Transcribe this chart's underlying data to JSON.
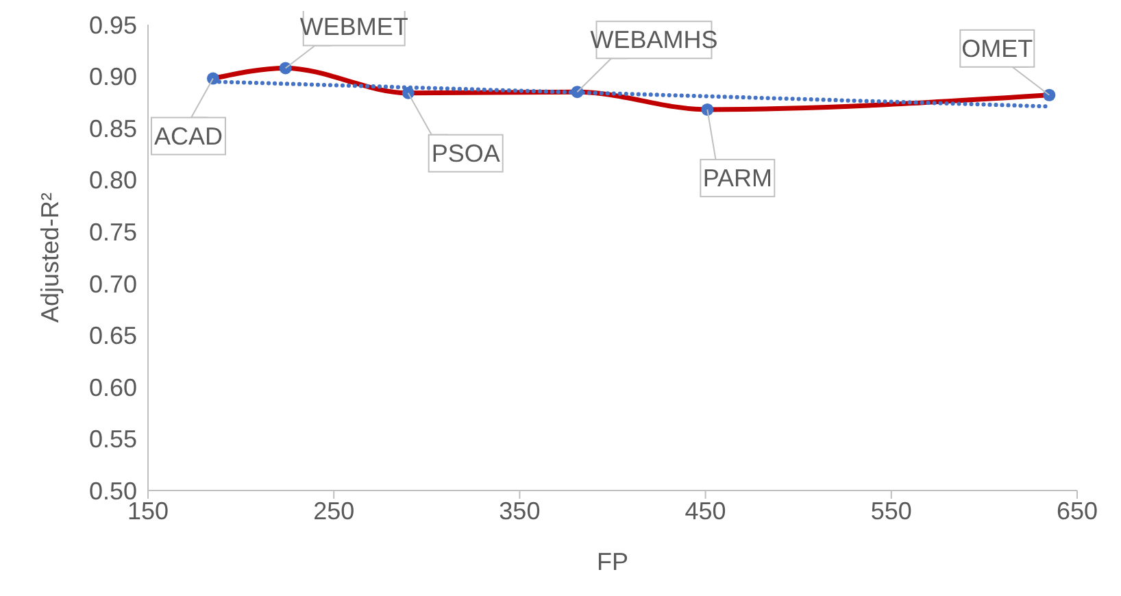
{
  "chart_data": {
    "type": "line",
    "xlabel": "FP",
    "ylabel": "Adjusted-R²",
    "xlim": [
      150,
      650
    ],
    "xticks": [
      150,
      250,
      350,
      450,
      550,
      650
    ],
    "ylim": [
      0.5,
      0.95
    ],
    "yticks": [
      {
        "value": 0.5,
        "label": "0.50"
      },
      {
        "value": 0.55,
        "label": "0.55"
      },
      {
        "value": 0.6,
        "label": "0.60"
      },
      {
        "value": 0.65,
        "label": "0.65"
      },
      {
        "value": 0.7,
        "label": "0.70"
      },
      {
        "value": 0.75,
        "label": "0.75"
      },
      {
        "value": 0.8,
        "label": "0.80"
      },
      {
        "value": 0.85,
        "label": "0.85"
      },
      {
        "value": 0.9,
        "label": "0.90"
      },
      {
        "value": 0.95,
        "label": "0.95"
      }
    ],
    "grid": false,
    "series": [
      {
        "color": "#c00000",
        "line_style": "solid",
        "marker": "none",
        "x": [
          185,
          224,
          290,
          381,
          451,
          635
        ],
        "values": [
          0.898,
          0.908,
          0.884,
          0.885,
          0.868,
          0.882
        ]
      },
      {
        "type": "scatter",
        "color": "#4472c4",
        "marker": "circle",
        "x": [
          185,
          224,
          290,
          381,
          451,
          635
        ],
        "values": [
          0.898,
          0.908,
          0.884,
          0.885,
          0.868,
          0.882
        ]
      },
      {
        "type": "line",
        "color": "#4472c4",
        "line_style": "dotted",
        "marker": "none",
        "x": [
          185,
          635
        ],
        "values": [
          0.895,
          0.871
        ]
      }
    ],
    "annotations": [
      {
        "text": "ACAD",
        "x": 185,
        "y": 0.898
      },
      {
        "text": "WEBMET",
        "x": 224,
        "y": 0.908
      },
      {
        "text": "PSOA",
        "x": 290,
        "y": 0.884
      },
      {
        "text": "WEBAMHS",
        "x": 381,
        "y": 0.885
      },
      {
        "text": "PARM",
        "x": 451,
        "y": 0.868
      },
      {
        "text": "OMET",
        "x": 635,
        "y": 0.882
      }
    ]
  }
}
